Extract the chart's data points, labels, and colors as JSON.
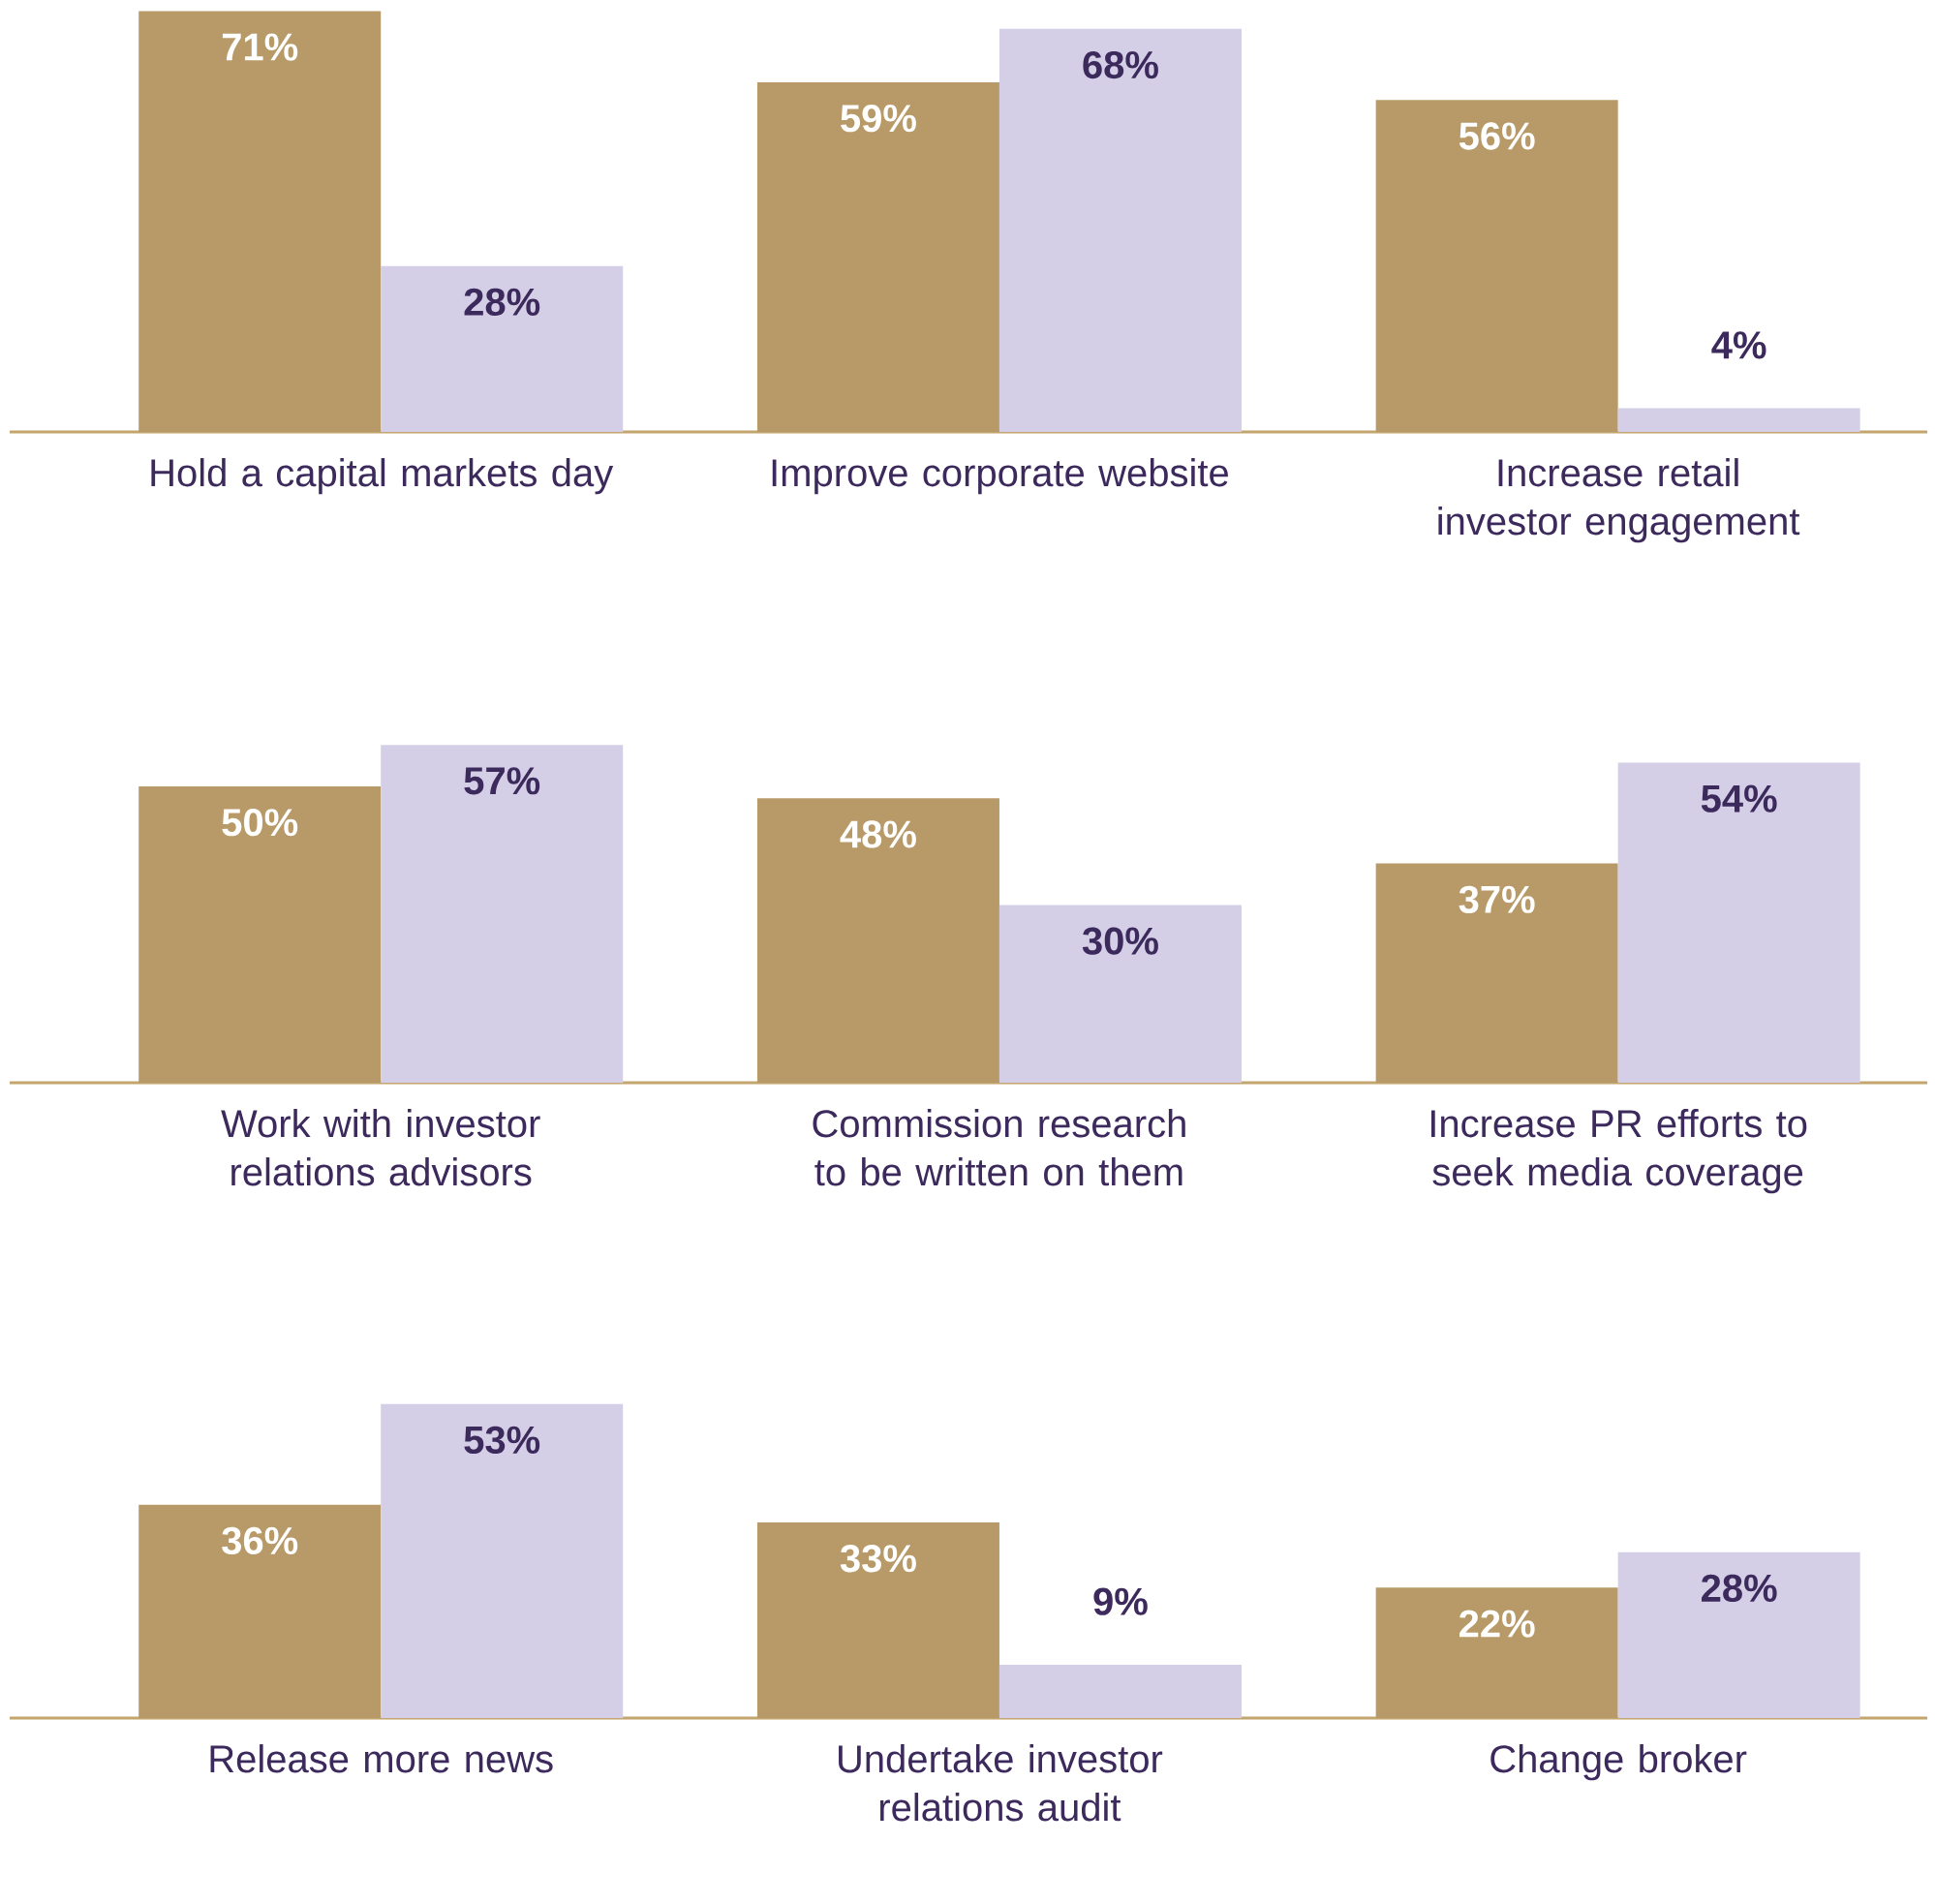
{
  "chart_data": [
    {
      "type": "bar",
      "categories": [
        "Hold a capital markets day",
        "Improve corporate website",
        "Increase retail investor engagement"
      ],
      "series": [
        {
          "color": "#b89a68",
          "values": [
            71,
            59,
            56
          ],
          "value_labels": [
            "71%",
            "59%",
            "56%"
          ]
        },
        {
          "color": "#d4cfe6",
          "values": [
            28,
            68,
            4
          ],
          "value_labels": [
            "28%",
            "68%",
            "4%"
          ]
        }
      ]
    },
    {
      "type": "bar",
      "categories": [
        "Work with investor relations advisors",
        "Commission research to be written on them",
        "Increase PR efforts to seek media coverage"
      ],
      "series": [
        {
          "color": "#b89a68",
          "values": [
            50,
            48,
            37
          ],
          "value_labels": [
            "50%",
            "48%",
            "37%"
          ]
        },
        {
          "color": "#d4cfe6",
          "values": [
            57,
            30,
            54
          ],
          "value_labels": [
            "57%",
            "30%",
            "54%"
          ]
        }
      ]
    },
    {
      "type": "bar",
      "categories": [
        "Release more news",
        "Undertake investor relations audit",
        "Change broker"
      ],
      "series": [
        {
          "color": "#b89a68",
          "values": [
            36,
            33,
            22
          ],
          "value_labels": [
            "36%",
            "33%",
            "22%"
          ]
        },
        {
          "color": "#d4cfe6",
          "values": [
            53,
            9,
            28
          ],
          "value_labels": [
            "53%",
            "9%",
            "28%"
          ]
        }
      ]
    }
  ]
}
